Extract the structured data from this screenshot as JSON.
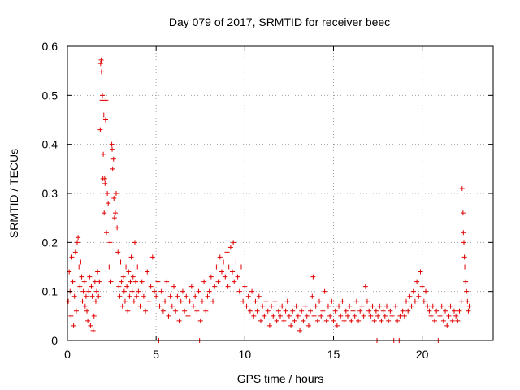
{
  "chart_data": {
    "type": "scatter",
    "title": "Day 079 of 2017, SRMTID for receiver beec",
    "xlabel": "GPS time / hours",
    "ylabel": "SRMTID / TECUs",
    "xlim": [
      0,
      24
    ],
    "ylim": [
      0,
      0.6
    ],
    "xticks": [
      0,
      5,
      10,
      15,
      20
    ],
    "yticks": [
      0,
      0.1,
      0.2,
      0.3,
      0.4,
      0.5,
      0.6
    ],
    "xtick_labels": [
      "0",
      "5",
      "10",
      "15",
      "20"
    ],
    "ytick_labels": [
      "0",
      "0.1",
      "0.2",
      "0.3",
      "0.4",
      "0.5",
      "0.6"
    ],
    "grid": true,
    "marker": "plus",
    "color": "#e00000",
    "series": [
      {
        "name": "SRMTID",
        "points": [
          [
            0.05,
            0.08
          ],
          [
            0.1,
            0.14
          ],
          [
            0.15,
            0.1
          ],
          [
            0.2,
            0.05
          ],
          [
            0.25,
            0.17
          ],
          [
            0.3,
            0.12
          ],
          [
            0.35,
            0.03
          ],
          [
            0.4,
            0.09
          ],
          [
            0.45,
            0.18
          ],
          [
            0.5,
            0.06
          ],
          [
            0.55,
            0.2
          ],
          [
            0.6,
            0.21
          ],
          [
            0.65,
            0.15
          ],
          [
            0.7,
            0.11
          ],
          [
            0.75,
            0.16
          ],
          [
            0.8,
            0.13
          ],
          [
            0.85,
            0.08
          ],
          [
            0.9,
            0.1
          ],
          [
            0.95,
            0.12
          ],
          [
            1.0,
            0.07
          ],
          [
            1.05,
            0.09
          ],
          [
            1.1,
            0.06
          ],
          [
            1.15,
            0.04
          ],
          [
            1.2,
            0.1
          ],
          [
            1.25,
            0.13
          ],
          [
            1.3,
            0.03
          ],
          [
            1.35,
            0.11
          ],
          [
            1.4,
            0.09
          ],
          [
            1.45,
            0.02
          ],
          [
            1.5,
            0.05
          ],
          [
            1.55,
            0.12
          ],
          [
            1.6,
            0.08
          ],
          [
            1.65,
            0.1
          ],
          [
            1.7,
            0.14
          ],
          [
            1.75,
            0.09
          ],
          [
            1.8,
            0.12
          ],
          [
            1.85,
            0.43
          ],
          [
            1.87,
            0.565
          ],
          [
            1.9,
            0.572
          ],
          [
            1.92,
            0.548
          ],
          [
            1.95,
            0.49
          ],
          [
            1.97,
            0.5
          ],
          [
            2.0,
            0.33
          ],
          [
            2.02,
            0.38
          ],
          [
            2.05,
            0.46
          ],
          [
            2.07,
            0.26
          ],
          [
            2.1,
            0.33
          ],
          [
            2.12,
            0.32
          ],
          [
            2.15,
            0.45
          ],
          [
            2.17,
            0.49
          ],
          [
            2.2,
            0.22
          ],
          [
            2.25,
            0.3
          ],
          [
            2.3,
            0.28
          ],
          [
            2.35,
            0.15
          ],
          [
            2.4,
            0.2
          ],
          [
            2.45,
            0.12
          ],
          [
            2.5,
            0.4
          ],
          [
            2.52,
            0.39
          ],
          [
            2.55,
            0.35
          ],
          [
            2.6,
            0.37
          ],
          [
            2.62,
            0.29
          ],
          [
            2.65,
            0.25
          ],
          [
            2.7,
            0.26
          ],
          [
            2.75,
            0.3
          ],
          [
            2.8,
            0.23
          ],
          [
            2.85,
            0.18
          ],
          [
            2.9,
            0.11
          ],
          [
            2.95,
            0.09
          ],
          [
            3.0,
            0.16
          ],
          [
            3.05,
            0.12
          ],
          [
            3.1,
            0.07
          ],
          [
            3.15,
            0.13
          ],
          [
            3.2,
            0.1
          ],
          [
            3.25,
            0.08
          ],
          [
            3.3,
            0.15
          ],
          [
            3.35,
            0.11
          ],
          [
            3.4,
            0.06
          ],
          [
            3.45,
            0.14
          ],
          [
            3.5,
            0.09
          ],
          [
            3.55,
            0.12
          ],
          [
            3.6,
            0.17
          ],
          [
            3.65,
            0.1
          ],
          [
            3.7,
            0.13
          ],
          [
            3.75,
            0.08
          ],
          [
            3.8,
            0.2
          ],
          [
            3.85,
            0.12
          ],
          [
            3.9,
            0.09
          ],
          [
            3.95,
            0.15
          ],
          [
            4.0,
            0.1
          ],
          [
            4.1,
            0.07
          ],
          [
            4.2,
            0.12
          ],
          [
            4.3,
            0.09
          ],
          [
            4.4,
            0.06
          ],
          [
            4.5,
            0.14
          ],
          [
            4.6,
            0.08
          ],
          [
            4.7,
            0.11
          ],
          [
            4.8,
            0.17
          ],
          [
            4.9,
            0.1
          ],
          [
            5.0,
            0.09
          ],
          [
            5.1,
            0.12
          ],
          [
            5.15,
            0.0
          ],
          [
            5.2,
            0.07
          ],
          [
            5.3,
            0.1
          ],
          [
            5.4,
            0.06
          ],
          [
            5.5,
            0.08
          ],
          [
            5.6,
            0.12
          ],
          [
            5.7,
            0.05
          ],
          [
            5.8,
            0.09
          ],
          [
            5.9,
            0.07
          ],
          [
            6.0,
            0.11
          ],
          [
            6.1,
            0.06
          ],
          [
            6.2,
            0.09
          ],
          [
            6.3,
            0.04
          ],
          [
            6.4,
            0.08
          ],
          [
            6.5,
            0.1
          ],
          [
            6.6,
            0.06
          ],
          [
            6.7,
            0.09
          ],
          [
            6.8,
            0.05
          ],
          [
            6.9,
            0.08
          ],
          [
            7.0,
            0.11
          ],
          [
            7.1,
            0.07
          ],
          [
            7.2,
            0.09
          ],
          [
            7.3,
            0.06
          ],
          [
            7.4,
            0.1
          ],
          [
            7.45,
            0.0
          ],
          [
            7.5,
            0.04
          ],
          [
            7.6,
            0.08
          ],
          [
            7.7,
            0.12
          ],
          [
            7.8,
            0.06
          ],
          [
            7.9,
            0.09
          ],
          [
            8.0,
            0.1
          ],
          [
            8.1,
            0.13
          ],
          [
            8.2,
            0.08
          ],
          [
            8.3,
            0.11
          ],
          [
            8.4,
            0.15
          ],
          [
            8.5,
            0.12
          ],
          [
            8.6,
            0.17
          ],
          [
            8.7,
            0.14
          ],
          [
            8.8,
            0.16
          ],
          [
            8.9,
            0.13
          ],
          [
            9.0,
            0.18
          ],
          [
            9.05,
            0.11
          ],
          [
            9.1,
            0.15
          ],
          [
            9.2,
            0.19
          ],
          [
            9.3,
            0.14
          ],
          [
            9.35,
            0.2
          ],
          [
            9.4,
            0.12
          ],
          [
            9.5,
            0.16
          ],
          [
            9.6,
            0.13
          ],
          [
            9.7,
            0.1
          ],
          [
            9.8,
            0.15
          ],
          [
            9.9,
            0.08
          ],
          [
            10.0,
            0.11
          ],
          [
            10.1,
            0.07
          ],
          [
            10.2,
            0.09
          ],
          [
            10.3,
            0.06
          ],
          [
            10.4,
            0.1
          ],
          [
            10.5,
            0.05
          ],
          [
            10.6,
            0.08
          ],
          [
            10.7,
            0.06
          ],
          [
            10.8,
            0.09
          ],
          [
            10.9,
            0.04
          ],
          [
            11.0,
            0.07
          ],
          [
            11.1,
            0.05
          ],
          [
            11.2,
            0.08
          ],
          [
            11.3,
            0.06
          ],
          [
            11.4,
            0.03
          ],
          [
            11.5,
            0.07
          ],
          [
            11.6,
            0.05
          ],
          [
            11.7,
            0.08
          ],
          [
            11.8,
            0.04
          ],
          [
            11.9,
            0.06
          ],
          [
            12.0,
            0.05
          ],
          [
            12.1,
            0.07
          ],
          [
            12.2,
            0.04
          ],
          [
            12.3,
            0.06
          ],
          [
            12.4,
            0.08
          ],
          [
            12.5,
            0.05
          ],
          [
            12.6,
            0.03
          ],
          [
            12.7,
            0.06
          ],
          [
            12.8,
            0.04
          ],
          [
            12.9,
            0.07
          ],
          [
            13.0,
            0.05
          ],
          [
            13.1,
            0.02
          ],
          [
            13.2,
            0.06
          ],
          [
            13.3,
            0.04
          ],
          [
            13.4,
            0.07
          ],
          [
            13.5,
            0.05
          ],
          [
            13.6,
            0.03
          ],
          [
            13.7,
            0.06
          ],
          [
            13.8,
            0.09
          ],
          [
            13.85,
            0.13
          ],
          [
            13.9,
            0.05
          ],
          [
            14.0,
            0.07
          ],
          [
            14.1,
            0.04
          ],
          [
            14.2,
            0.08
          ],
          [
            14.3,
            0.05
          ],
          [
            14.4,
            0.06
          ],
          [
            14.5,
            0.1
          ],
          [
            14.6,
            0.04
          ],
          [
            14.7,
            0.07
          ],
          [
            14.8,
            0.05
          ],
          [
            14.9,
            0.08
          ],
          [
            15.0,
            0.04
          ],
          [
            15.1,
            0.06
          ],
          [
            15.2,
            0.03
          ],
          [
            15.3,
            0.07
          ],
          [
            15.4,
            0.05
          ],
          [
            15.5,
            0.08
          ],
          [
            15.6,
            0.04
          ],
          [
            15.7,
            0.06
          ],
          [
            15.8,
            0.05
          ],
          [
            15.9,
            0.07
          ],
          [
            16.0,
            0.04
          ],
          [
            16.1,
            0.06
          ],
          [
            16.2,
            0.05
          ],
          [
            16.3,
            0.08
          ],
          [
            16.4,
            0.04
          ],
          [
            16.5,
            0.06
          ],
          [
            16.6,
            0.07
          ],
          [
            16.7,
            0.05
          ],
          [
            16.8,
            0.11
          ],
          [
            16.9,
            0.08
          ],
          [
            17.0,
            0.06
          ],
          [
            17.1,
            0.05
          ],
          [
            17.2,
            0.07
          ],
          [
            17.3,
            0.04
          ],
          [
            17.4,
            0.06
          ],
          [
            17.45,
            0.0
          ],
          [
            17.5,
            0.05
          ],
          [
            17.6,
            0.07
          ],
          [
            17.7,
            0.04
          ],
          [
            17.8,
            0.06
          ],
          [
            17.9,
            0.05
          ],
          [
            18.0,
            0.07
          ],
          [
            18.1,
            0.04
          ],
          [
            18.2,
            0.06
          ],
          [
            18.3,
            0.05
          ],
          [
            18.4,
            0.0
          ],
          [
            18.5,
            0.07
          ],
          [
            18.6,
            0.04
          ],
          [
            18.7,
            0.0
          ],
          [
            18.75,
            0.05
          ],
          [
            18.8,
            0.0
          ],
          [
            18.9,
            0.06
          ],
          [
            19.0,
            0.05
          ],
          [
            19.1,
            0.08
          ],
          [
            19.2,
            0.06
          ],
          [
            19.3,
            0.09
          ],
          [
            19.4,
            0.07
          ],
          [
            19.5,
            0.1
          ],
          [
            19.6,
            0.08
          ],
          [
            19.7,
            0.12
          ],
          [
            19.8,
            0.09
          ],
          [
            19.9,
            0.14
          ],
          [
            20.0,
            0.11
          ],
          [
            20.1,
            0.08
          ],
          [
            20.2,
            0.1
          ],
          [
            20.3,
            0.07
          ],
          [
            20.4,
            0.06
          ],
          [
            20.5,
            0.05
          ],
          [
            20.6,
            0.07
          ],
          [
            20.7,
            0.04
          ],
          [
            20.8,
            0.06
          ],
          [
            20.9,
            0.0
          ],
          [
            21.0,
            0.05
          ],
          [
            21.1,
            0.07
          ],
          [
            21.2,
            0.04
          ],
          [
            21.3,
            0.06
          ],
          [
            21.4,
            0.03
          ],
          [
            21.5,
            0.05
          ],
          [
            21.6,
            0.07
          ],
          [
            21.7,
            0.04
          ],
          [
            21.8,
            0.06
          ],
          [
            21.9,
            0.05
          ],
          [
            22.0,
            0.04
          ],
          [
            22.1,
            0.06
          ],
          [
            22.2,
            0.08
          ],
          [
            22.25,
            0.31
          ],
          [
            22.3,
            0.26
          ],
          [
            22.32,
            0.22
          ],
          [
            22.35,
            0.2
          ],
          [
            22.38,
            0.17
          ],
          [
            22.4,
            0.15
          ],
          [
            22.45,
            0.12
          ],
          [
            22.5,
            0.1
          ],
          [
            22.55,
            0.08
          ],
          [
            22.6,
            0.06
          ],
          [
            22.65,
            0.07
          ]
        ]
      }
    ]
  }
}
